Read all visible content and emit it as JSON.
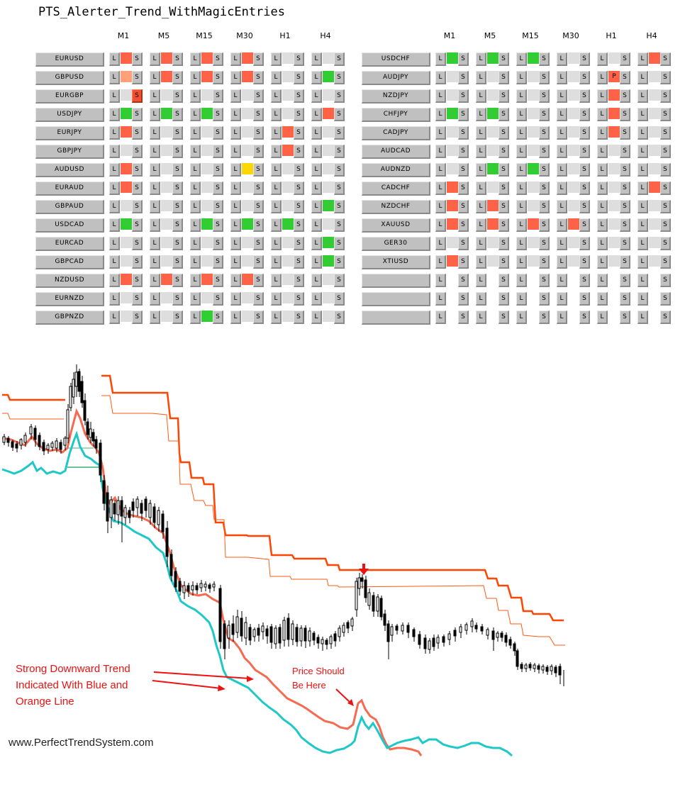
{
  "title": "PTS_Alerter_Trend_WithMagicEntries",
  "timeframes": [
    "M1",
    "M5",
    "M15",
    "M30",
    "H1",
    "H4"
  ],
  "button_labels": {
    "long": "L",
    "short": "S"
  },
  "state_colors": {
    "red": "#ff6347",
    "salmon": "#ffa07a",
    "green": "#32cd32",
    "yellow": "#ffd700",
    "none": "#dedede"
  },
  "left_panel": {
    "rows": [
      {
        "symbol": "EURUSD",
        "states": [
          "red",
          "red",
          "red",
          "red",
          "none",
          "none"
        ]
      },
      {
        "symbol": "GBPUSD",
        "states": [
          "salmon",
          "red",
          "red",
          "red",
          "none",
          "green"
        ]
      },
      {
        "symbol": "EURGBP",
        "states": [
          "none",
          "none",
          "none",
          "none",
          "none",
          "none"
        ],
        "short_highlight_tf": "M1"
      },
      {
        "symbol": "USDJPY",
        "states": [
          "green",
          "green",
          "green",
          "none",
          "none",
          "red"
        ]
      },
      {
        "symbol": "EURJPY",
        "states": [
          "red",
          "none",
          "none",
          "none",
          "red",
          "none"
        ]
      },
      {
        "symbol": "GBPJPY",
        "states": [
          "none",
          "none",
          "none",
          "none",
          "red",
          "none"
        ]
      },
      {
        "symbol": "AUDUSD",
        "states": [
          "red",
          "none",
          "none",
          "yellow",
          "none",
          "none"
        ]
      },
      {
        "symbol": "EURAUD",
        "states": [
          "red",
          "none",
          "none",
          "none",
          "none",
          "none"
        ]
      },
      {
        "symbol": "GBPAUD",
        "states": [
          "none",
          "none",
          "none",
          "none",
          "none",
          "green"
        ]
      },
      {
        "symbol": "USDCAD",
        "states": [
          "green",
          "none",
          "green",
          "green",
          "green",
          "none"
        ]
      },
      {
        "symbol": "EURCAD",
        "states": [
          "none",
          "none",
          "none",
          "none",
          "none",
          "green"
        ]
      },
      {
        "symbol": "GBPCAD",
        "states": [
          "none",
          "none",
          "none",
          "none",
          "none",
          "green"
        ]
      },
      {
        "symbol": "NZDUSD",
        "states": [
          "red",
          "red",
          "red",
          "red",
          "none",
          "none"
        ]
      },
      {
        "symbol": "EURNZD",
        "states": [
          "none",
          "none",
          "none",
          "none",
          "none",
          "none"
        ]
      },
      {
        "symbol": "GBPNZD",
        "states": [
          "none",
          "none",
          "green",
          "none",
          "none",
          "none"
        ]
      }
    ]
  },
  "right_panel": {
    "rows": [
      {
        "symbol": "USDCHF",
        "states": [
          "green",
          "green",
          "green",
          "none",
          "none",
          "red"
        ]
      },
      {
        "symbol": "AUDJPY",
        "states": [
          "none",
          "none",
          "none",
          "none",
          "red",
          "none"
        ],
        "marks": {
          "H1": "P"
        }
      },
      {
        "symbol": "NZDJPY",
        "states": [
          "none",
          "none",
          "none",
          "none",
          "red",
          "none"
        ]
      },
      {
        "symbol": "CHFJPY",
        "states": [
          "green",
          "green",
          "none",
          "none",
          "red",
          "none"
        ]
      },
      {
        "symbol": "CADJPY",
        "states": [
          "none",
          "none",
          "none",
          "none",
          "red",
          "none"
        ]
      },
      {
        "symbol": "AUDCAD",
        "states": [
          "none",
          "none",
          "none",
          "none",
          "none",
          "none"
        ]
      },
      {
        "symbol": "AUDNZD",
        "states": [
          "none",
          "green",
          "green",
          "none",
          "none",
          "none"
        ]
      },
      {
        "symbol": "CADCHF",
        "states": [
          "red",
          "none",
          "none",
          "none",
          "none",
          "red"
        ]
      },
      {
        "symbol": "NZDCHF",
        "states": [
          "red",
          "red",
          "none",
          "none",
          "none",
          "none"
        ]
      },
      {
        "symbol": "XAUUSD",
        "states": [
          "red",
          "red",
          "red",
          "red",
          "none",
          "none"
        ]
      },
      {
        "symbol": "GER30",
        "states": [
          "none",
          "none",
          "none",
          "none",
          "none",
          "none"
        ]
      },
      {
        "symbol": "XTIUSD",
        "states": [
          "red",
          "none",
          "none",
          "none",
          "none",
          "none"
        ]
      },
      {
        "symbol": "",
        "states": [
          "empty",
          "empty",
          "empty",
          "empty",
          "empty",
          "empty"
        ]
      },
      {
        "symbol": "",
        "states": [
          "empty",
          "empty",
          "empty",
          "empty",
          "empty",
          "empty"
        ]
      },
      {
        "symbol": "",
        "states": [
          "empty",
          "empty",
          "empty",
          "empty",
          "empty",
          "empty"
        ]
      }
    ]
  },
  "chart": {
    "annotation_trend": [
      "Strong Downward Trend",
      "Indicated With Blue and",
      "Orange Line"
    ],
    "annotation_price": [
      "Price Should",
      "Be Here"
    ],
    "watermark": "www.PerfectTrendSystem.com",
    "colors": {
      "candles": "#000000",
      "orange_line": "#f56a50",
      "blue_line": "#1ec8c8",
      "stop_thick": "#ff4500",
      "stop_thin": "#ff5a14",
      "arrow": "#ee1111",
      "green_line": "#3cb371"
    }
  }
}
